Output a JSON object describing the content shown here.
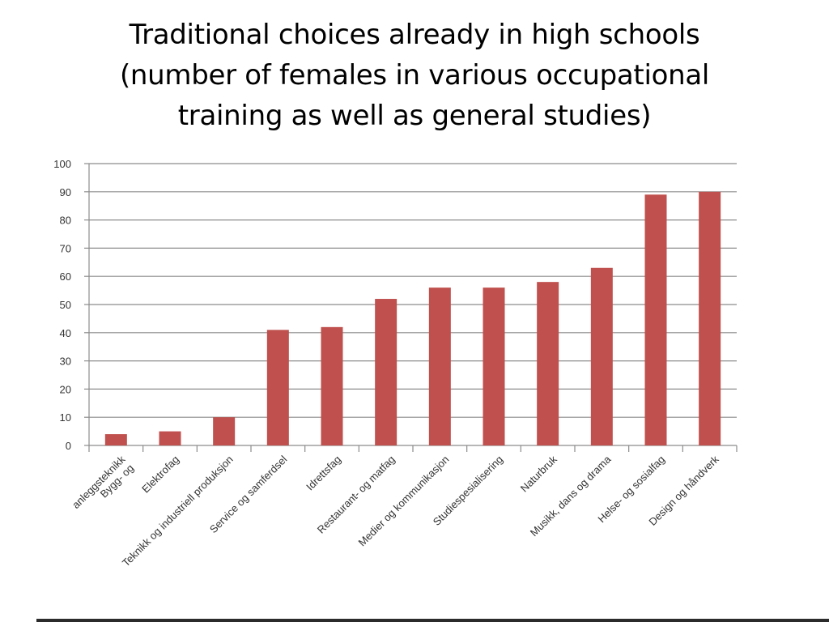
{
  "slide": {
    "title_lines": [
      "Traditional choices already in high schools",
      "(number of females in various occupational",
      "training as well as general studies)"
    ]
  },
  "chart_data": {
    "type": "bar",
    "title": "",
    "xlabel": "",
    "ylabel": "",
    "ylim": [
      0,
      100
    ],
    "yticks": [
      0,
      10,
      20,
      30,
      40,
      50,
      60,
      70,
      80,
      90,
      100
    ],
    "grid": true,
    "legend": "none",
    "bar_color": "#c0504d",
    "categories": [
      [
        "Bygg- og",
        "anleggsteknikk"
      ],
      [
        "Elektrofag"
      ],
      [
        "Teknikk og industriell produksjon"
      ],
      [
        "Service og samferdsel"
      ],
      [
        "Idrettsfag"
      ],
      [
        "Restaurant- og matfag"
      ],
      [
        "Medier og kommunikasjon"
      ],
      [
        "Studiespesialisering"
      ],
      [
        "Naturbruk"
      ],
      [
        "Musikk, dans og drama"
      ],
      [
        "Helse- og sosialfag"
      ],
      [
        "Design og håndverk"
      ]
    ],
    "values": [
      4,
      5,
      10,
      41,
      42,
      52,
      56,
      56,
      58,
      63,
      89,
      90
    ]
  }
}
